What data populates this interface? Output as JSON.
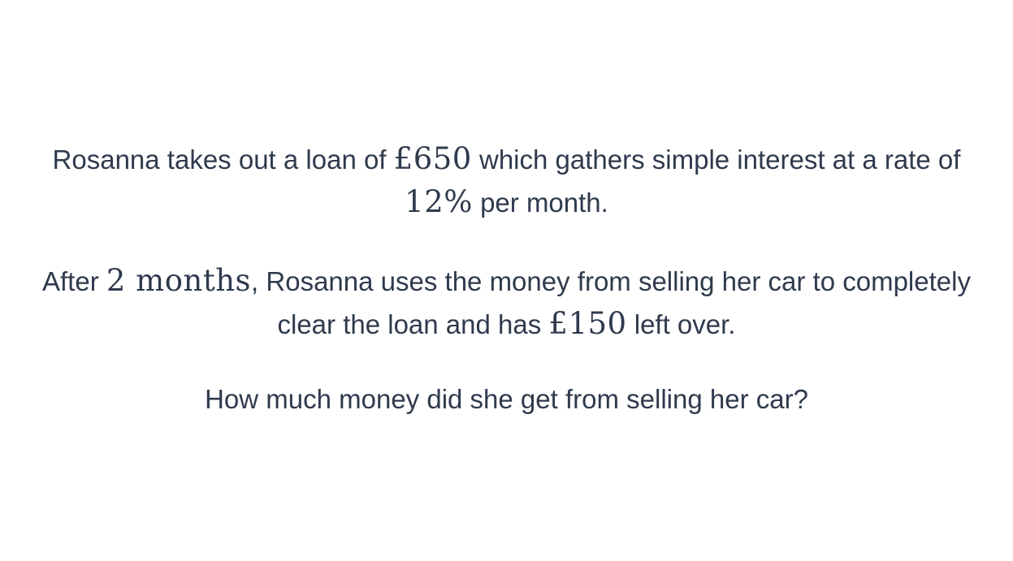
{
  "paragraphs": {
    "p1": {
      "t1": "Rosanna takes out a loan of ",
      "m1": "£650",
      "t2": " which gathers simple interest at a rate of ",
      "m2": "12%",
      "t3": " per month."
    },
    "p2": {
      "t1": "After ",
      "m1": "2 months",
      "t2": ", Rosanna uses the money from selling her car to completely clear the loan and has ",
      "m2": "£150",
      "t3": " left over."
    },
    "p3": {
      "t1": "How much money did she get from selling her car?"
    }
  }
}
